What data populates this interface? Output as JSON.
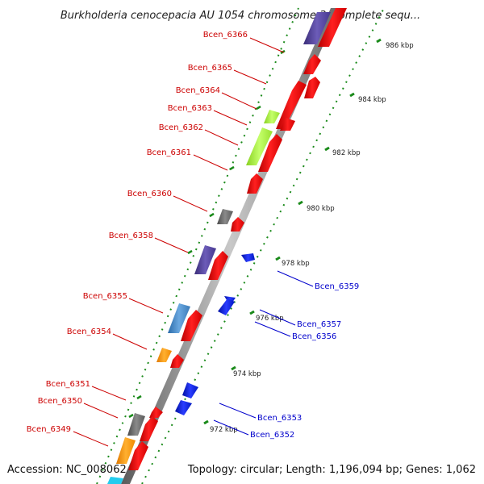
{
  "title": "Burkholderia cenocepacia AU 1054 chromosome 3, complete sequ...",
  "footer": {
    "accession": "Accession: NC_008062",
    "topology": "Topology: circular; Length: 1,196,094 bp; Genes: 1,062"
  },
  "colors": {
    "forward_label": "#cc0000",
    "reverse_label": "#0000cc",
    "red": "#ff0000",
    "blue": "#0022ee",
    "purple": "#5a4aa0",
    "lime": "#a8f040",
    "gray": "#6e6e6e",
    "orange": "#ff9c10",
    "steelblue": "#4a8cc8",
    "tick_green": "#1a8a1a"
  },
  "ticks": [
    "972 kbp",
    "974 kbp",
    "976 kbp",
    "978 kbp",
    "980 kbp",
    "982 kbp",
    "984 kbp",
    "986 kbp"
  ],
  "forward_labels": [
    "Bcen_6366",
    "Bcen_6365",
    "Bcen_6364",
    "Bcen_6363",
    "Bcen_6362",
    "Bcen_6361",
    "Bcen_6360",
    "Bcen_6358",
    "Bcen_6355",
    "Bcen_6354",
    "Bcen_6351",
    "Bcen_6350",
    "Bcen_6349"
  ],
  "reverse_labels": [
    "Bcen_6359",
    "Bcen_6357",
    "Bcen_6356",
    "Bcen_6353",
    "Bcen_6352"
  ],
  "features": [
    {
      "color": "purple"
    },
    {
      "color": "red"
    },
    {
      "color": "red"
    },
    {
      "color": "red"
    },
    {
      "color": "red"
    },
    {
      "color": "lime"
    },
    {
      "color": "red"
    },
    {
      "color": "lime"
    },
    {
      "color": "red"
    },
    {
      "color": "red"
    },
    {
      "color": "gray"
    },
    {
      "color": "red"
    },
    {
      "color": "blue"
    },
    {
      "color": "purple"
    },
    {
      "color": "red"
    },
    {
      "color": "blue"
    },
    {
      "color": "blue"
    },
    {
      "color": "steelblue"
    },
    {
      "color": "red"
    },
    {
      "color": "orange"
    },
    {
      "color": "red"
    },
    {
      "color": "blue"
    },
    {
      "color": "blue"
    },
    {
      "color": "gray"
    },
    {
      "color": "red"
    },
    {
      "color": "red"
    },
    {
      "color": "orange"
    },
    {
      "color": "red"
    }
  ]
}
